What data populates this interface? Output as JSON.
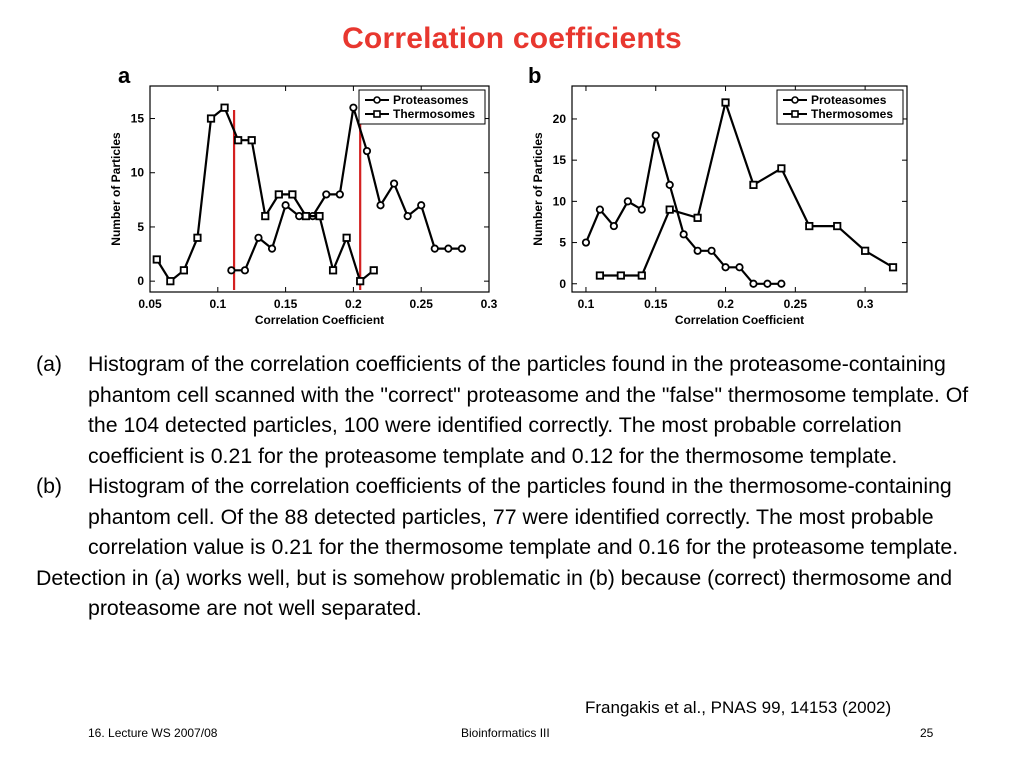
{
  "slide": {
    "title": "Correlation coefficients",
    "caption_a_label": "(a)",
    "caption_a": "Histogram of the correlation coefficients of the particles found in the proteasome-containing phantom cell scanned with the \"correct\" proteasome and the \"false\" thermosome template. Of the 104 detected particles, 100 were identified correctly. The most probable correlation coefficient is 0.21 for the proteasome template and 0.12 for the thermosome template.",
    "caption_b_label": "(b)",
    "caption_b": "Histogram of the correlation coefficients of the particles found in the thermosome-containing phantom cell. Of the 88 detected particles, 77 were identified correctly. The most probable correlation value is 0.21 for the thermosome template and 0.16 for the proteasome template.",
    "conclusion": "Detection in (a) works well, but is somehow problematic in (b) because (correct) thermosome and proteasome are not well separated.",
    "reference": "Frangakis et al., PNAS 99, 14153 (2002)",
    "footer_left": "16. Lecture WS 2007/08",
    "footer_center": "Bioinformatics III",
    "footer_right": "25"
  },
  "chart_data": [
    {
      "panel": "a",
      "type": "line",
      "xlabel": "Correlation Coefficient",
      "ylabel": "Number of Particles",
      "xlim": [
        0.05,
        0.3
      ],
      "ylim": [
        -1,
        18
      ],
      "xticks": [
        "0.05",
        "0.1",
        "0.15",
        "0.2",
        "0.25",
        "0.3"
      ],
      "yticks": [
        "0",
        "5",
        "10",
        "15"
      ],
      "legend_position": "top-right",
      "vlines": [
        0.112,
        0.205
      ],
      "vline_color": "#d42020",
      "series": [
        {
          "name": "Proteasomes",
          "marker": "circle",
          "x": [
            0.11,
            0.12,
            0.13,
            0.14,
            0.15,
            0.16,
            0.17,
            0.18,
            0.19,
            0.2,
            0.21,
            0.22,
            0.23,
            0.24,
            0.25,
            0.26,
            0.27,
            0.28
          ],
          "y": [
            1,
            1,
            4,
            3,
            7,
            6,
            6,
            8,
            8,
            16,
            12,
            7,
            9,
            6,
            7,
            3,
            3,
            3
          ]
        },
        {
          "name": "Thermosomes",
          "marker": "square",
          "x": [
            0.055,
            0.065,
            0.075,
            0.085,
            0.095,
            0.105,
            0.115,
            0.125,
            0.135,
            0.145,
            0.155,
            0.165,
            0.175,
            0.185,
            0.195,
            0.205,
            0.215
          ],
          "y": [
            2,
            0,
            1,
            4,
            15,
            16,
            13,
            13,
            6,
            8,
            8,
            6,
            6,
            1,
            4,
            0,
            1
          ]
        }
      ]
    },
    {
      "panel": "b",
      "type": "line",
      "xlabel": "Correlation Coefficient",
      "ylabel": "Number of Particles",
      "xlim": [
        0.09,
        0.33
      ],
      "ylim": [
        -1,
        24
      ],
      "xticks": [
        "0.1",
        "0.15",
        "0.2",
        "0.25",
        "0.3"
      ],
      "yticks": [
        "0",
        "5",
        "10",
        "15",
        "20"
      ],
      "legend_position": "top-right",
      "series": [
        {
          "name": "Proteasomes",
          "marker": "circle",
          "x": [
            0.1,
            0.11,
            0.12,
            0.13,
            0.14,
            0.15,
            0.16,
            0.17,
            0.18,
            0.19,
            0.2,
            0.21,
            0.22,
            0.23,
            0.24
          ],
          "y": [
            5,
            9,
            7,
            10,
            9,
            18,
            12,
            6,
            4,
            4,
            2,
            2,
            0,
            0,
            0
          ]
        },
        {
          "name": "Thermosomes",
          "marker": "square",
          "x": [
            0.11,
            0.125,
            0.14,
            0.16,
            0.18,
            0.2,
            0.22,
            0.24,
            0.26,
            0.28,
            0.3,
            0.32
          ],
          "y": [
            1,
            1,
            1,
            9,
            8,
            22,
            12,
            14,
            7,
            7,
            4,
            2
          ]
        }
      ]
    }
  ]
}
